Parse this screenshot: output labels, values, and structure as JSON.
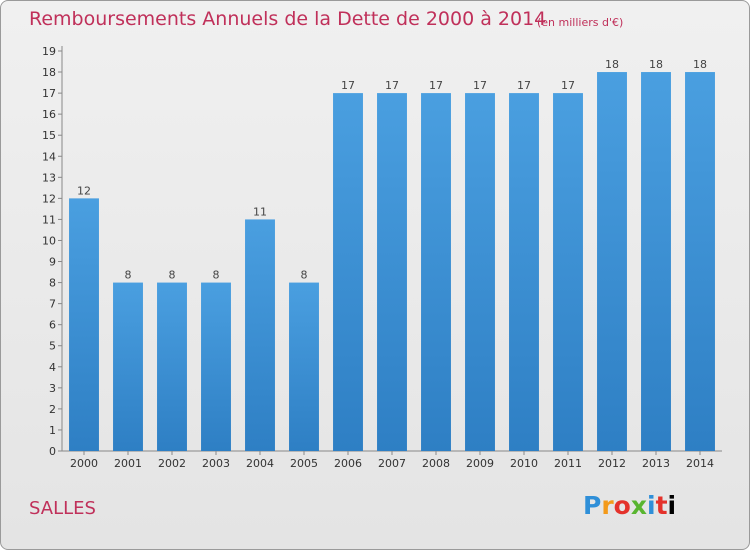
{
  "title": "Remboursements Annuels de la Dette de 2000 à 2014",
  "subtitle": "(en milliers d'€)",
  "commune": "SALLES",
  "logo": [
    "P",
    "r",
    "o",
    "x",
    "i",
    "t",
    "i"
  ],
  "colors": {
    "bar": "#4a9fe0",
    "bar_dark": "#2e7fc4",
    "title": "#c0305a"
  },
  "chart_data": {
    "type": "bar",
    "categories": [
      "2000",
      "2001",
      "2002",
      "2003",
      "2004",
      "2005",
      "2006",
      "2007",
      "2008",
      "2009",
      "2010",
      "2011",
      "2012",
      "2013",
      "2014"
    ],
    "values": [
      12,
      8,
      8,
      8,
      11,
      8,
      17,
      17,
      17,
      17,
      17,
      17,
      18,
      18,
      18
    ],
    "title": "Remboursements Annuels de la Dette de 2000 à 2014",
    "subtitle": "(en milliers d'€)",
    "xlabel": "",
    "ylabel": "",
    "ylim": [
      0,
      19
    ],
    "yticks": [
      0,
      1,
      2,
      3,
      4,
      5,
      6,
      7,
      8,
      9,
      10,
      11,
      12,
      13,
      14,
      15,
      16,
      17,
      18,
      19
    ],
    "grid": false
  }
}
